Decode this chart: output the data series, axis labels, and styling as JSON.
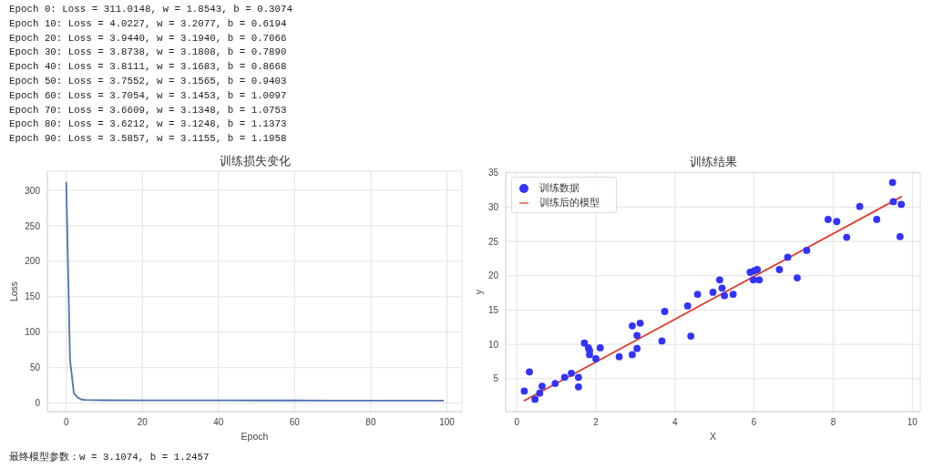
{
  "chart_data": [
    {
      "type": "line",
      "title": "训练损失变化",
      "xlabel": "Epoch",
      "ylabel": "Loss",
      "x": [
        0,
        1,
        2,
        3,
        4,
        5,
        10,
        20,
        30,
        40,
        50,
        60,
        70,
        80,
        90,
        99
      ],
      "series": [
        {
          "color": "#4c72b0",
          "values": [
            311.0148,
            61,
            14,
            8,
            5,
            4.5,
            4.0227,
            3.944,
            3.8738,
            3.8111,
            3.7552,
            3.7054,
            3.6609,
            3.6212,
            3.5857,
            3.56
          ]
        }
      ],
      "xlim": [
        -4.95,
        103.95
      ],
      "ylim": [
        -12,
        327
      ],
      "xticks": [
        0,
        20,
        40,
        60,
        80,
        100
      ],
      "yticks": [
        0,
        50,
        100,
        150,
        200,
        250,
        300
      ],
      "grid": true,
      "annotations": [
        "Epoch 0: Loss = 311.0148, w = 1.8543, b = 0.3074",
        "Epoch 10: Loss = 4.0227, w = 3.2077, b = 0.6194",
        "Epoch 20: Loss = 3.9440, w = 3.1940, b = 0.7066",
        "Epoch 30: Loss = 3.8738, w = 3.1808, b = 0.7890",
        "Epoch 40: Loss = 3.8111, w = 3.1683, b = 0.8668",
        "Epoch 50: Loss = 3.7552, w = 3.1565, b = 0.9403",
        "Epoch 60: Loss = 3.7054, w = 3.1453, b = 1.0097",
        "Epoch 70: Loss = 3.6609, w = 3.1348, b = 1.0753",
        "Epoch 80: Loss = 3.6212, w = 3.1248, b = 1.1373",
        "Epoch 90: Loss = 3.5857, w = 3.1155, b = 1.1958"
      ]
    },
    {
      "type": "scatter",
      "title": "训练结果",
      "xlabel": "X",
      "ylabel": "y",
      "series": [
        {
          "name": "训练数据",
          "color": "#3333ff",
          "x": [
            0.19,
            0.32,
            0.46,
            0.58,
            0.64,
            0.97,
            1.21,
            1.38,
            1.56,
            1.56,
            1.71,
            1.81,
            1.84,
            1.84,
            2.0,
            2.11,
            2.59,
            2.92,
            2.92,
            3.04,
            3.04,
            3.12,
            3.67,
            3.74,
            4.32,
            4.4,
            4.57,
            4.96,
            5.13,
            5.19,
            5.25,
            5.47,
            5.9,
            6.0,
            6.08,
            5.98,
            6.13,
            6.64,
            6.85,
            7.09,
            7.33,
            7.87,
            8.09,
            8.34,
            8.67,
            9.1,
            9.5,
            9.52,
            9.72,
            9.69
          ],
          "values": [
            3.2,
            6.0,
            2.0,
            2.9,
            3.9,
            4.3,
            5.2,
            5.8,
            5.2,
            3.8,
            10.2,
            9.5,
            9.1,
            8.5,
            7.9,
            9.5,
            8.2,
            12.7,
            8.5,
            11.3,
            9.4,
            13.1,
            10.5,
            14.8,
            15.6,
            11.2,
            17.3,
            17.6,
            19.4,
            18.2,
            17.1,
            17.3,
            20.5,
            20.7,
            20.9,
            19.4,
            19.4,
            20.9,
            22.7,
            19.7,
            23.7,
            28.2,
            27.9,
            25.6,
            30.1,
            28.2,
            33.6,
            30.8,
            30.4,
            25.7
          ]
        },
        {
          "name": "训练后的模型",
          "type": "line",
          "color": "#e3382b",
          "marker": "none",
          "x": [
            0.19,
            9.72
          ],
          "values": [
            1.8,
            31.5
          ]
        }
      ],
      "xlim": [
        -0.28,
        10.2
      ],
      "ylim": [
        0.2,
        35.1
      ],
      "xticks": [
        0,
        2,
        4,
        6,
        8,
        10
      ],
      "yticks": [
        5,
        10,
        15,
        20,
        25,
        30,
        35
      ],
      "grid": true,
      "legend": "top left",
      "marker": "circle",
      "annotations": [
        "最终模型参数：w = 3.1074, b = 1.2457"
      ]
    }
  ]
}
